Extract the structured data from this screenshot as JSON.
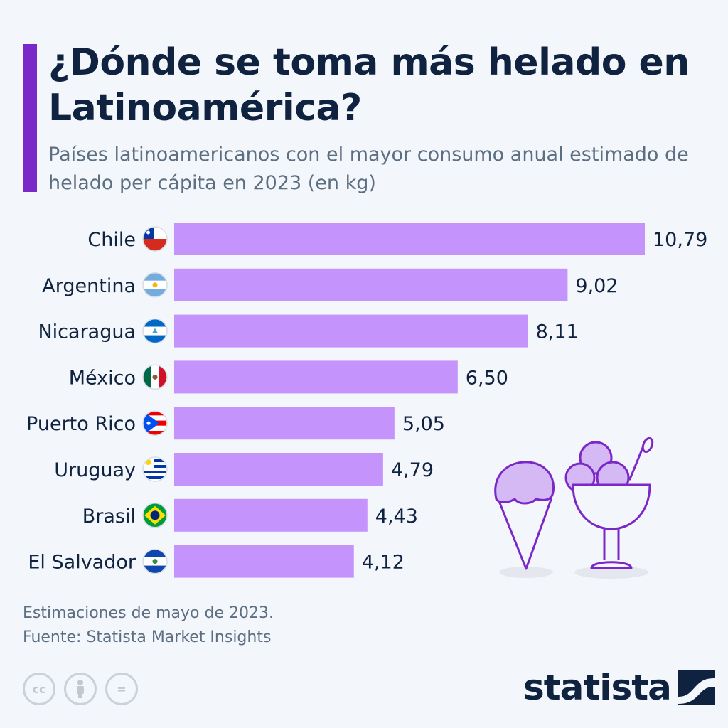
{
  "header": {
    "title": "¿Dónde se toma más helado en Latinoamérica?",
    "subtitle": "Países latinoamericanos con el mayor consumo anual estimado de helado per cápita en 2023 (en kg)"
  },
  "chart_data": {
    "type": "bar",
    "orientation": "horizontal",
    "categories": [
      "Chile",
      "Argentina",
      "Nicaragua",
      "México",
      "Puerto Rico",
      "Uruguay",
      "Brasil",
      "El Salvador"
    ],
    "values": [
      10.79,
      9.02,
      8.11,
      6.5,
      5.05,
      4.79,
      4.43,
      4.12
    ],
    "value_labels": [
      "10,79",
      "9,02",
      "8,11",
      "6,50",
      "5,05",
      "4,79",
      "4,43",
      "4,12"
    ],
    "flags": [
      "chile-flag-icon",
      "argentina-flag-icon",
      "nicaragua-flag-icon",
      "mexico-flag-icon",
      "puerto-rico-flag-icon",
      "uruguay-flag-icon",
      "brazil-flag-icon",
      "el-salvador-flag-icon"
    ],
    "bar_color": "#c493fc",
    "xlim": [
      0,
      10.79
    ],
    "title": "¿Dónde se toma más helado en Latinoamérica?",
    "xlabel": "",
    "ylabel": ""
  },
  "footer": {
    "note": "Estimaciones de mayo de 2023.",
    "source": "Fuente: Statista Market Insights",
    "brand": "statista",
    "license_icons": [
      "cc-icon",
      "attribution-icon",
      "no-derivatives-icon"
    ],
    "license_text": {
      "cc": "cc",
      "nd": "="
    }
  },
  "colors": {
    "accent": "#7b28c8",
    "title": "#0f2240",
    "text": "#5c6e82",
    "bar": "#c493fc",
    "background": "#f3f6fa"
  }
}
